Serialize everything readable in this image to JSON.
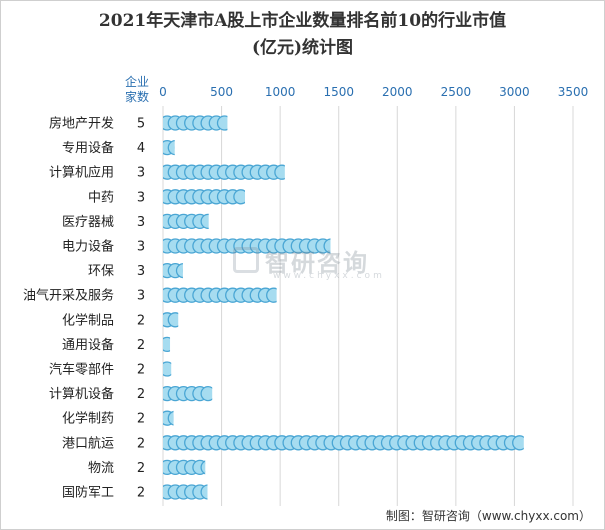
{
  "chart_data": {
    "type": "bar",
    "title_line1": "2021年天津市A股上市企业数量排名前10的行业市值",
    "title_line2": "(亿元)统计图",
    "count_header": [
      "企业",
      "家数"
    ],
    "xlim": [
      0,
      3500
    ],
    "xticks": [
      0,
      500,
      1000,
      1500,
      2000,
      2500,
      3000,
      3500
    ],
    "categories": [
      "房地产开发",
      "专用设备",
      "计算机应用",
      "中药",
      "医疗器械",
      "电力设备",
      "环保",
      "油气开采及服务",
      "化学制品",
      "通用设备",
      "汽车零部件",
      "计算机设备",
      "化学制药",
      "港口航运",
      "物流",
      "国防军工"
    ],
    "counts": [
      5,
      4,
      3,
      3,
      3,
      3,
      3,
      3,
      2,
      2,
      2,
      2,
      2,
      2,
      2,
      2
    ],
    "values": [
      550,
      100,
      1040,
      700,
      390,
      1430,
      170,
      970,
      130,
      60,
      70,
      420,
      90,
      3080,
      360,
      380
    ],
    "bar_color": "#a6dcf0",
    "bar_stroke": "#4aa6d4"
  },
  "watermark": {
    "text": "智研咨询",
    "url": "www.chyxx.com"
  },
  "source": "制图：智研咨询（www.chyxx.com）"
}
